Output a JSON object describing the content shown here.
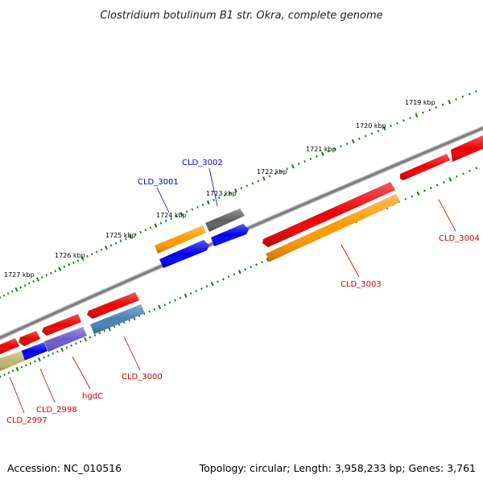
{
  "title": "Clostridium botulinum B1 str. Okra, complete genome",
  "footer": {
    "accession": "Accession: NC_010516",
    "summary": "Topology: circular; Length: 3,958,233 bp; Genes: 3,761"
  },
  "colors": {
    "backbone": "#808080",
    "tick": "#1a7a1a",
    "red": "#ee0000",
    "orange": "#ff9900",
    "blue": "#0000ee",
    "gray": "#606060",
    "steel": "#4682b4",
    "slate": "#6a5acd",
    "khaki": "#bdb76b",
    "label_red": "#cc0000",
    "label_blue": "#0000cc"
  },
  "ticks": [
    {
      "label": "1719 kbp"
    },
    {
      "label": "1720 kbp"
    },
    {
      "label": "1721 kbp"
    },
    {
      "label": "1722 kbp"
    },
    {
      "label": "1723 kbp"
    },
    {
      "label": "1724 kbp"
    },
    {
      "label": "1725 kbp"
    },
    {
      "label": "1726 kbp"
    },
    {
      "label": "1727 kbp"
    }
  ],
  "gene_labels": [
    {
      "name": "CLD_3002",
      "color": "blue"
    },
    {
      "name": "CLD_3001",
      "color": "blue"
    },
    {
      "name": "CLD_3004",
      "color": "red"
    },
    {
      "name": "CLD_3003",
      "color": "red"
    },
    {
      "name": "CLD_3000",
      "color": "red"
    },
    {
      "name": "hgdC",
      "color": "red"
    },
    {
      "name": "CLD_2998",
      "color": "red"
    },
    {
      "name": "CLD_2997",
      "color": "red"
    }
  ]
}
